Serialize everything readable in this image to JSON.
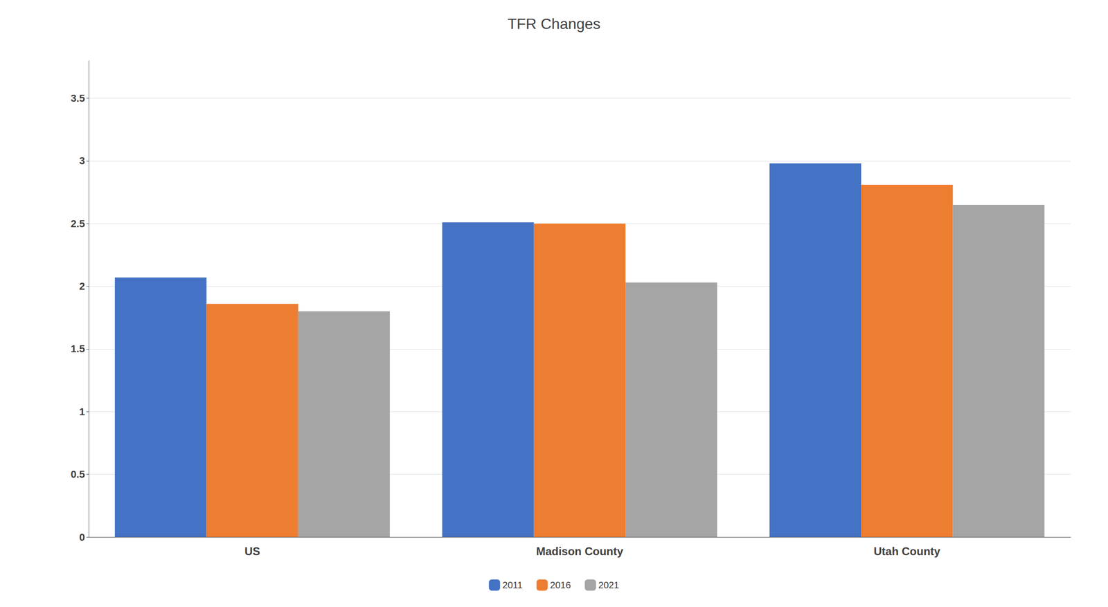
{
  "chart_data": {
    "type": "bar",
    "title": "TFR Changes",
    "categories": [
      "US",
      "Madison County",
      "Utah County"
    ],
    "series": [
      {
        "name": "2011",
        "color": "#4472C4",
        "values": [
          2.07,
          2.51,
          2.98
        ]
      },
      {
        "name": "2016",
        "color": "#ED7D31",
        "values": [
          1.86,
          2.5,
          2.81
        ]
      },
      {
        "name": "2021",
        "color": "#A5A5A5",
        "values": [
          1.8,
          2.03,
          2.65
        ]
      }
    ],
    "ylim": [
      0,
      3.8
    ],
    "yticks": [
      0,
      0.5,
      1,
      1.5,
      2,
      2.5,
      3,
      3.5
    ],
    "grid": true,
    "legend": "bottom"
  }
}
